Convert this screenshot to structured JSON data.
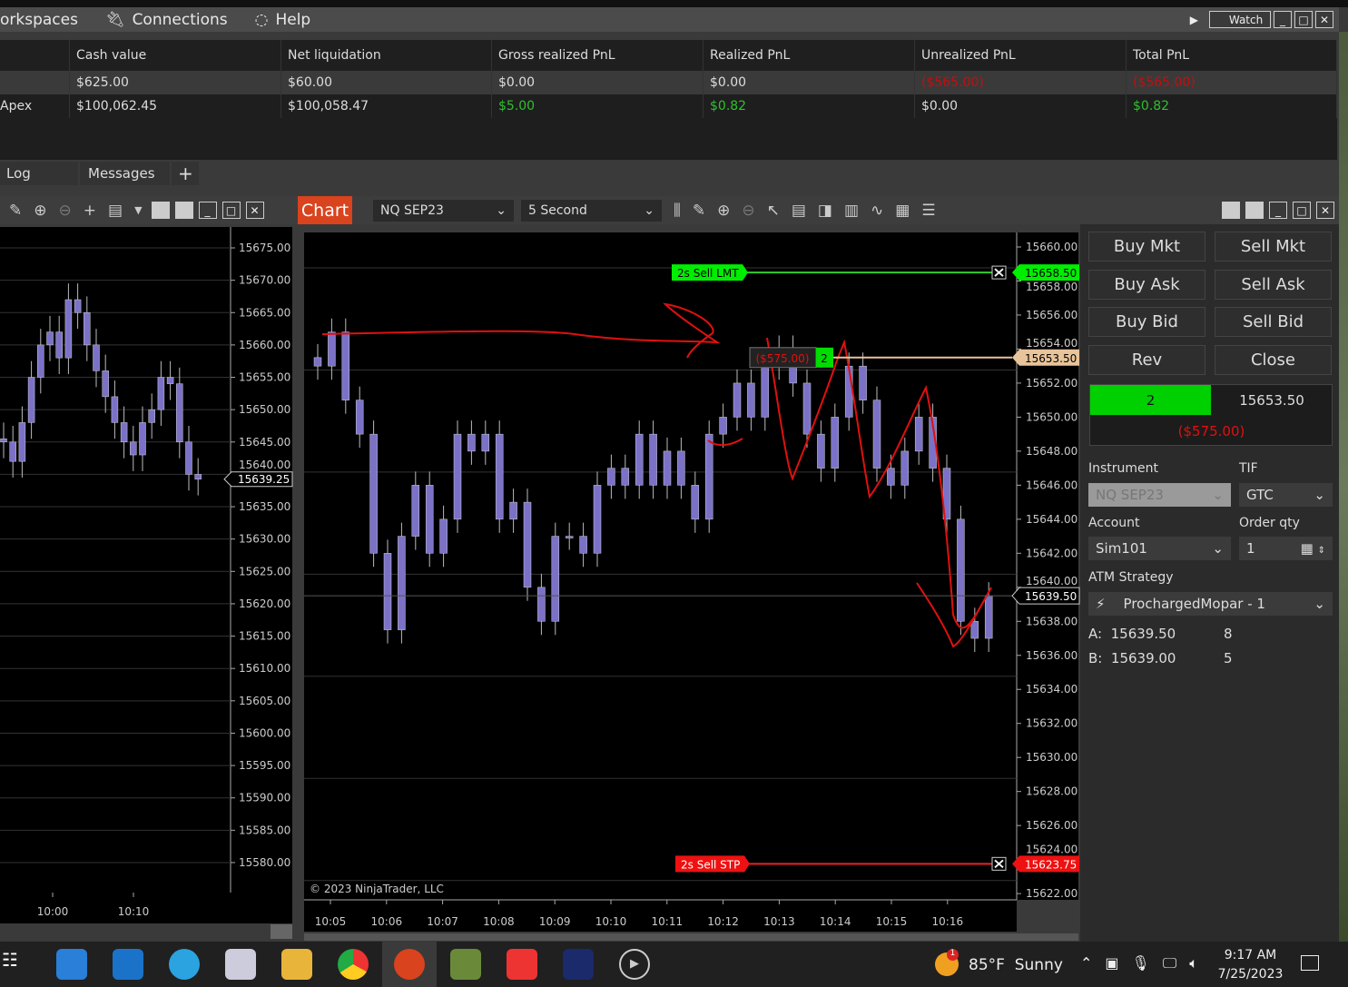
{
  "menu": {
    "items": [
      "orkspaces",
      "Connections",
      "Help"
    ],
    "watch": "Watch"
  },
  "accounts": {
    "headers": [
      "",
      "Cash value",
      "Net liquidation",
      "Gross realized PnL",
      "Realized PnL",
      "Unrealized PnL",
      "Total PnL"
    ],
    "rows": [
      [
        "",
        "$625.00",
        "$60.00",
        "$0.00",
        "$0.00",
        "($565.00)",
        "($565.00)"
      ],
      [
        "Apex",
        "$100,062.45",
        "$100,058.47",
        "$5.00",
        "$0.82",
        "$0.00",
        "$0.82"
      ]
    ]
  },
  "bottom_tabs": [
    "Log",
    "Messages",
    "+"
  ],
  "chart_window": {
    "tag": "Chart",
    "instrument": "NQ SEP23",
    "interval": "5 Second"
  },
  "main_chart": {
    "y_ticks": [
      "15660.00",
      "15658.00",
      "15656.00",
      "15654.00",
      "15652.00",
      "15650.00",
      "15648.00",
      "15646.00",
      "15644.00",
      "15642.00",
      "15640.00",
      "15638.00",
      "15636.00",
      "15634.00",
      "15632.00",
      "15630.00",
      "15628.00",
      "15626.00",
      "15624.00",
      "15622.00"
    ],
    "x_ticks": [
      "10:05",
      "10:06",
      "10:07",
      "10:08",
      "10:09",
      "10:10",
      "10:11",
      "10:12",
      "10:13",
      "10:14",
      "10:15",
      "10:16"
    ],
    "closes": [
      15653,
      15655,
      15651,
      15649,
      15642,
      15637.5,
      15643,
      15646,
      15642,
      15644,
      15649,
      15648,
      15649,
      15644,
      15645,
      15640,
      15638,
      15643,
      15643,
      15642,
      15646,
      15647,
      15646,
      15649,
      15646,
      15648,
      15646,
      15644,
      15649,
      15650,
      15652,
      15650,
      15653,
      15654,
      15652,
      15649,
      15647,
      15650,
      15653,
      15651,
      15647,
      15646,
      15648,
      15650,
      15647,
      15644,
      15638,
      15637,
      15639.5
    ],
    "sell_lmt": {
      "label": "2s  Sell LMT",
      "price": "15658.50"
    },
    "sell_stp": {
      "label": "2s  Sell STP",
      "price": "15623.75"
    },
    "position": {
      "pnl": "($575.00)",
      "qty": "2",
      "price": "15653.50"
    },
    "last_price": "15639.50",
    "copyright": "© 2023 NinjaTrader, LLC"
  },
  "left_chart": {
    "y_ticks": [
      "15675.00",
      "15670.00",
      "15665.00",
      "15660.00",
      "15655.00",
      "15650.00",
      "15645.00",
      "15640.00",
      "15635.00",
      "15630.00",
      "15625.00",
      "15620.00",
      "15615.00",
      "15610.00",
      "15605.00",
      "15600.00",
      "15595.00",
      "15590.00",
      "15585.00",
      "15580.00"
    ],
    "x_ticks": [
      "10:00",
      "10:10"
    ],
    "last_price": "15639.25",
    "closes": [
      15645,
      15642,
      15648,
      15655,
      15660,
      15662,
      15658,
      15667,
      15665,
      15660,
      15656,
      15652,
      15648,
      15645,
      15643,
      15648,
      15650,
      15655,
      15654,
      15645,
      15640,
      15639.25
    ]
  },
  "order_panel": {
    "buttons": [
      "Buy Mkt",
      "Sell Mkt",
      "Buy Ask",
      "Sell Ask",
      "Buy Bid",
      "Sell Bid",
      "Rev",
      "Close"
    ],
    "position_qty": "2",
    "position_price": "15653.50",
    "position_pnl": "($575.00)",
    "instrument_label": "Instrument",
    "instrument": "NQ SEP23",
    "tif_label": "TIF",
    "tif": "GTC",
    "account_label": "Account",
    "account": "Sim101",
    "qty_label": "Order qty",
    "qty": "1",
    "atm_label": "ATM Strategy",
    "atm": "ProchargedMopar - 1",
    "ask_label": "A:",
    "ask": "15639.50",
    "ask_size": "8",
    "bid_label": "B:",
    "bid": "15639.00",
    "bid_size": "5"
  },
  "taskbar": {
    "weather_temp": "85°F",
    "weather_text": "Sunny",
    "weather_badge": "1",
    "time": "9:17 AM",
    "date": "7/25/2023"
  },
  "colors": {
    "green": "#00d000",
    "red": "#e01010",
    "candle": "#7b72c8",
    "orange": "#d9431e",
    "position_line": "#e8c49a"
  }
}
